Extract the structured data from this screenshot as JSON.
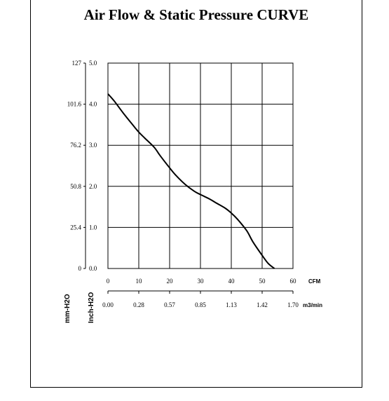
{
  "chart_data": {
    "type": "line",
    "title": "Air Flow & Static Pressure CURVE",
    "series": [
      {
        "x": [
          0,
          2,
          5,
          8,
          10,
          12,
          15,
          17,
          20,
          22,
          25,
          28,
          30,
          33,
          35,
          38,
          40,
          42,
          45,
          47,
          50,
          52,
          54
        ],
        "y": [
          4.25,
          4.08,
          3.78,
          3.5,
          3.32,
          3.17,
          2.95,
          2.74,
          2.45,
          2.27,
          2.05,
          1.88,
          1.8,
          1.69,
          1.6,
          1.47,
          1.35,
          1.2,
          0.92,
          0.65,
          0.32,
          0.12,
          0.0
        ]
      }
    ],
    "x_axis": {
      "ticks": [
        "0",
        "10",
        "20",
        "30",
        "40",
        "50",
        "60"
      ],
      "unit": "CFM",
      "range": [
        0,
        60
      ]
    },
    "x_axis_secondary": {
      "ticks": [
        "0.00",
        "0.28",
        "0.57",
        "0.85",
        "1.13",
        "1.42",
        "1.70"
      ],
      "unit": "m3/min"
    },
    "y_axis": {
      "ticks": [
        "0.0",
        "1.0",
        "2.0",
        "3.0",
        "4.0",
        "5.0"
      ],
      "label": "Inch-H2O",
      "range": [
        0,
        5
      ]
    },
    "y_axis_secondary": {
      "ticks": [
        "0",
        "25.4",
        "50.8",
        "76.2",
        "101.6",
        "127"
      ],
      "label": "mm-H2O"
    },
    "grid": true
  }
}
